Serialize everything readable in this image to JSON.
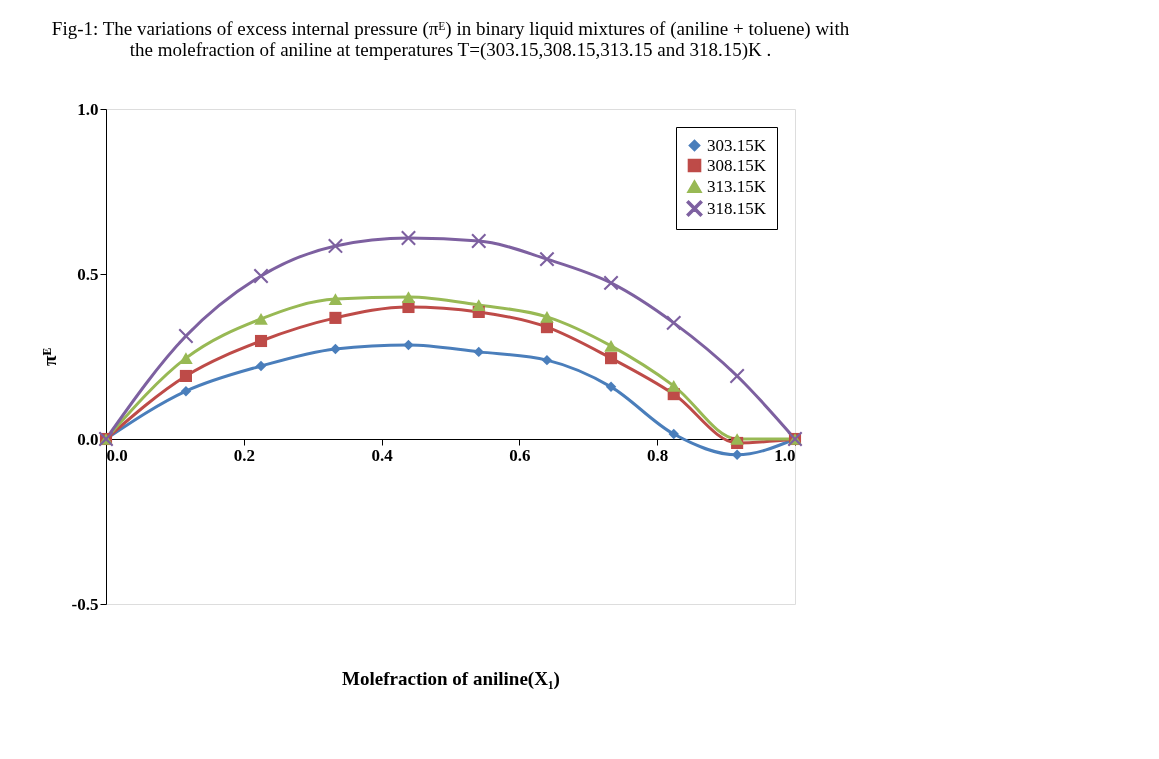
{
  "chart_data": {
    "type": "line",
    "title": "Fig-1: The variations of   excess internal pressure (πᴱ) in binary liquid mixtures of  (aniline  + toluene) with the molefraction of aniline at temperatures T=(303.15,308.15,313.15 and 318.15)K .",
    "xlabel": "Molefraction of aniline(X₁)",
    "ylabel": "πᴱ",
    "x": [
      0,
      0.116,
      0.225,
      0.333,
      0.439,
      0.541,
      0.64,
      0.733,
      0.824,
      0.916,
      1.0
    ],
    "series": [
      {
        "name": "303.15K",
        "color": "#4a7ebb",
        "marker": "diamond",
        "values": [
          0,
          0.145,
          0.221,
          0.273,
          0.285,
          0.264,
          0.239,
          0.158,
          0.015,
          -0.048,
          0
        ]
      },
      {
        "name": "308.15K",
        "color": "#be4b48",
        "marker": "square",
        "values": [
          0,
          0.191,
          0.297,
          0.367,
          0.4,
          0.385,
          0.339,
          0.245,
          0.136,
          -0.012,
          0
        ]
      },
      {
        "name": "313.15K",
        "color": "#98b954",
        "marker": "triangle",
        "values": [
          0,
          0.245,
          0.364,
          0.424,
          0.43,
          0.406,
          0.37,
          0.282,
          0.161,
          0,
          0
        ]
      },
      {
        "name": "318.15K",
        "color": "#7d60a0",
        "marker": "cross",
        "values": [
          0,
          0.312,
          0.494,
          0.585,
          0.609,
          0.6,
          0.545,
          0.473,
          0.352,
          0.191,
          0
        ]
      }
    ],
    "xlim": [
      0,
      1
    ],
    "xticks": [
      {
        "value": 0,
        "label": "0.0"
      },
      0.2,
      0.4,
      0.6,
      0.8,
      {
        "value": 1,
        "label": "1.0"
      }
    ],
    "ylim": [
      -0.5,
      1
    ],
    "yticks": [
      -0.5,
      {
        "value": 0,
        "label": "0.0"
      },
      0.5,
      {
        "value": 1,
        "label": "1.0"
      }
    ],
    "grid": false,
    "legend": "top right",
    "line_style": "solid"
  }
}
